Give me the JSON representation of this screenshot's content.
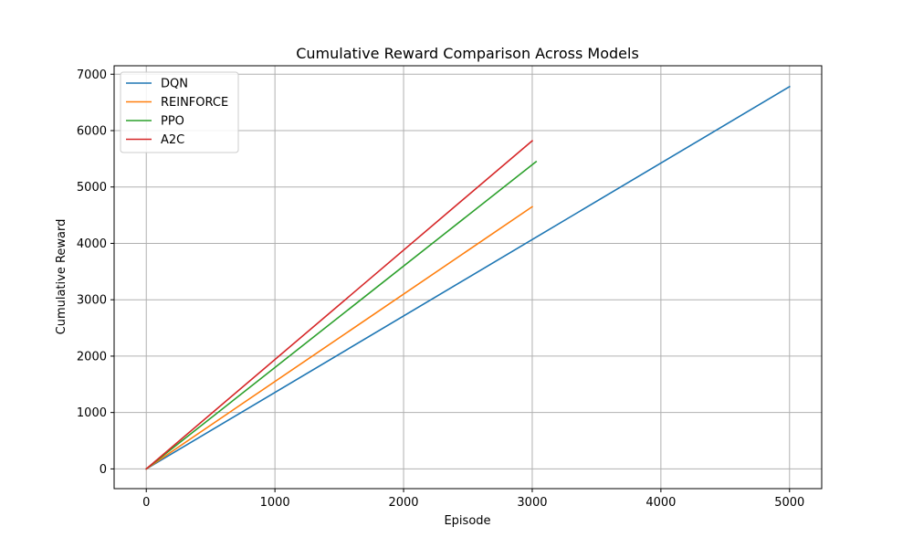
{
  "chart_data": {
    "type": "line",
    "title": "Cumulative Reward Comparison Across Models",
    "xlabel": "Episode",
    "ylabel": "Cumulative Reward",
    "xlim": [
      -250,
      5250
    ],
    "ylim": [
      -350,
      7150
    ],
    "xticks": [
      0,
      1000,
      2000,
      3000,
      4000,
      5000
    ],
    "yticks": [
      0,
      1000,
      2000,
      3000,
      4000,
      5000,
      6000,
      7000
    ],
    "grid": true,
    "legend_position": "top-left",
    "series": [
      {
        "name": "DQN",
        "color": "#1f77b4",
        "x": [
          0,
          5000
        ],
        "y": [
          0,
          6780
        ]
      },
      {
        "name": "REINFORCE",
        "color": "#ff7f0e",
        "x": [
          0,
          3000
        ],
        "y": [
          0,
          4650
        ]
      },
      {
        "name": "PPO",
        "color": "#2ca02c",
        "x": [
          0,
          3030
        ],
        "y": [
          0,
          5450
        ]
      },
      {
        "name": "A2C",
        "color": "#d62728",
        "x": [
          0,
          3000
        ],
        "y": [
          0,
          5820
        ]
      }
    ]
  }
}
